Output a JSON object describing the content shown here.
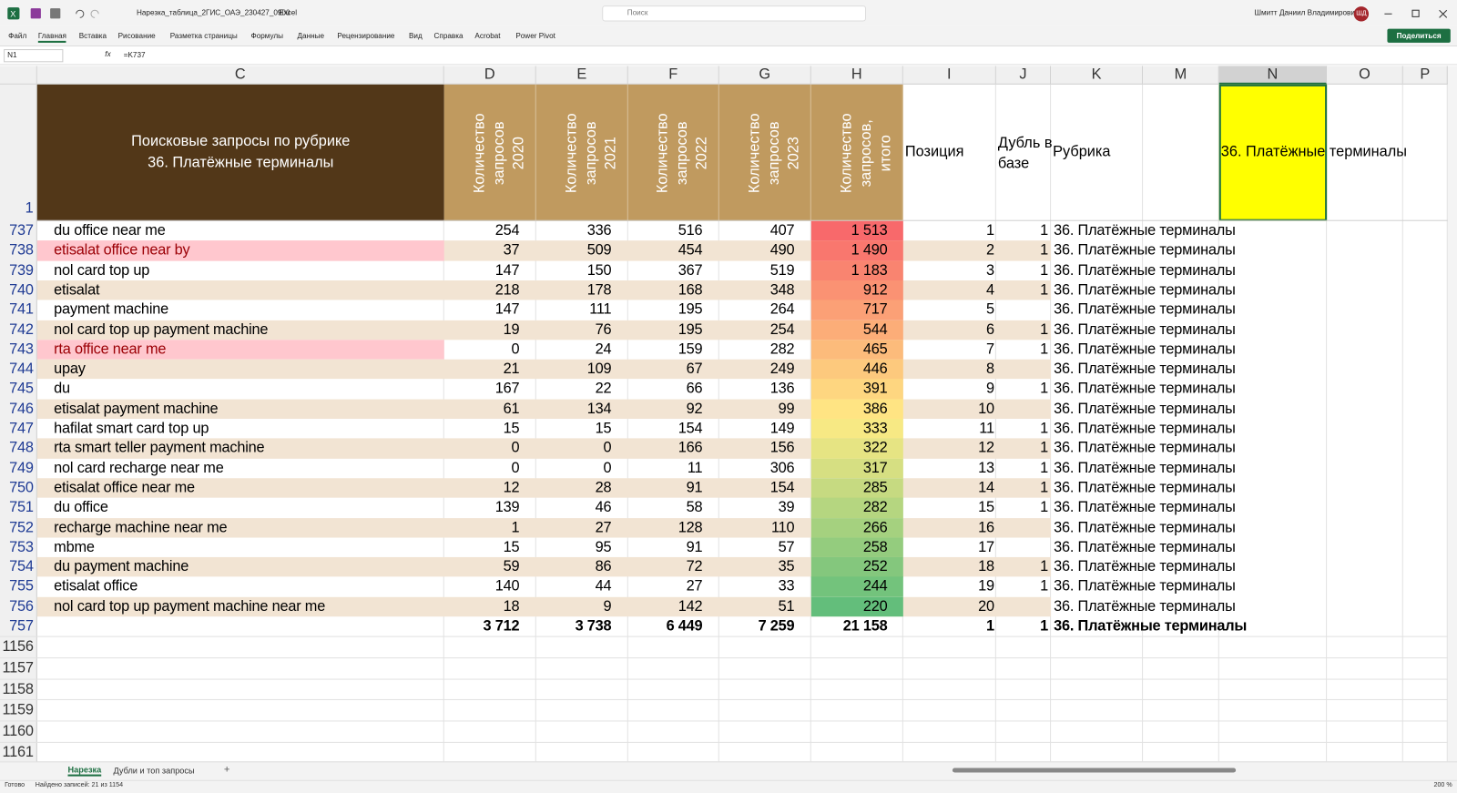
{
  "title_bar": {
    "file_name": "Нарезка_таблица_2ГИС_ОАЭ_230427_0900",
    "app": "Excel",
    "search": "Поиск",
    "user": "Шмитт Даниил Владимирович",
    "initials": "ШД"
  },
  "ribbon": {
    "tabs": [
      "Файл",
      "Главная",
      "Вставка",
      "Рисование",
      "Разметка страницы",
      "Формулы",
      "Данные",
      "Рецензирование",
      "Вид",
      "Справка",
      "Acrobat",
      "Power Pivot"
    ],
    "share": "Поделиться"
  },
  "formula_bar": {
    "name_box": "N1",
    "fx": "fx",
    "formula": "=K737"
  },
  "sheet": {
    "columns": [
      "C",
      "D",
      "E",
      "F",
      "G",
      "H",
      "I",
      "J",
      "K",
      "M",
      "N",
      "O",
      "P"
    ],
    "header": {
      "row": "1",
      "query": [
        "Поисковые запросы по рубрике",
        "36. Платёжные терминалы"
      ],
      "counts": [
        "Количество запросов 2020",
        "Количество запросов 2021",
        "Количество запросов 2022",
        "Количество запросов 2023",
        "Количество запросов, итого"
      ],
      "position": "Позиция",
      "duplicate": "Дубль в базе",
      "rubric": "Рубрика",
      "selected": "36. Платёжные терминалы"
    },
    "rows": [
      {
        "row": "737",
        "query": "du office near me",
        "counts": [
          "254",
          "336",
          "516",
          "407"
        ],
        "total": "1 513",
        "position": "1",
        "duplicate": "1",
        "rubric": "36. Платёжные терминалы"
      },
      {
        "row": "738",
        "query": "etisalat office near by",
        "counts": [
          "37",
          "509",
          "454",
          "490"
        ],
        "total": "1 490",
        "position": "2",
        "duplicate": "1",
        "rubric": "36. Платёжные терминалы",
        "fill": "#ffc7ce"
      },
      {
        "row": "739",
        "query": "nol card top up",
        "counts": [
          "147",
          "150",
          "367",
          "519"
        ],
        "total": "1 183",
        "position": "3",
        "duplicate": "1",
        "rubric": "36. Платёжные терминалы"
      },
      {
        "row": "740",
        "query": "etisalat",
        "counts": [
          "218",
          "178",
          "168",
          "348"
        ],
        "total": "912",
        "position": "4",
        "duplicate": "1",
        "rubric": "36. Платёжные терминалы"
      },
      {
        "row": "741",
        "query": "payment machine",
        "counts": [
          "147",
          "111",
          "195",
          "264"
        ],
        "total": "717",
        "position": "5",
        "duplicate": null,
        "rubric": "36. Платёжные терминалы"
      },
      {
        "row": "742",
        "query": "nol card top up payment machine",
        "counts": [
          "19",
          "76",
          "195",
          "254"
        ],
        "total": "544",
        "position": "6",
        "duplicate": "1",
        "rubric": "36. Платёжные терминалы"
      },
      {
        "row": "743",
        "query": "rta office near me",
        "counts": [
          "0",
          "24",
          "159",
          "282"
        ],
        "total": "465",
        "position": "7",
        "duplicate": "1",
        "rubric": "36. Платёжные терминалы",
        "fill": "#ffc7ce"
      },
      {
        "row": "744",
        "query": "upay",
        "counts": [
          "21",
          "109",
          "67",
          "249"
        ],
        "total": "446",
        "position": "8",
        "duplicate": null,
        "rubric": "36. Платёжные терминалы"
      },
      {
        "row": "745",
        "query": "du",
        "counts": [
          "167",
          "22",
          "66",
          "136"
        ],
        "total": "391",
        "position": "9",
        "duplicate": "1",
        "rubric": "36. Платёжные терминалы"
      },
      {
        "row": "746",
        "query": "etisalat payment machine",
        "counts": [
          "61",
          "134",
          "92",
          "99"
        ],
        "total": "386",
        "position": "10",
        "duplicate": null,
        "rubric": "36. Платёжные терминалы"
      },
      {
        "row": "747",
        "query": "hafilat smart card top up",
        "counts": [
          "15",
          "15",
          "154",
          "149"
        ],
        "total": "333",
        "position": "11",
        "duplicate": "1",
        "rubric": "36. Платёжные терминалы"
      },
      {
        "row": "748",
        "query": "rta smart teller payment machine",
        "counts": [
          "0",
          "0",
          "166",
          "156"
        ],
        "total": "322",
        "position": "12",
        "duplicate": "1",
        "rubric": "36. Платёжные терминалы"
      },
      {
        "row": "749",
        "query": "nol card recharge near me",
        "counts": [
          "0",
          "0",
          "11",
          "306"
        ],
        "total": "317",
        "position": "13",
        "duplicate": "1",
        "rubric": "36. Платёжные терминалы"
      },
      {
        "row": "750",
        "query": "etisalat office near me",
        "counts": [
          "12",
          "28",
          "91",
          "154"
        ],
        "total": "285",
        "position": "14",
        "duplicate": "1",
        "rubric": "36. Платёжные терминалы"
      },
      {
        "row": "751",
        "query": "du office",
        "counts": [
          "139",
          "46",
          "58",
          "39"
        ],
        "total": "282",
        "position": "15",
        "duplicate": "1",
        "rubric": "36. Платёжные терминалы"
      },
      {
        "row": "752",
        "query": "recharge machine near me",
        "counts": [
          "1",
          "27",
          "128",
          "110"
        ],
        "total": "266",
        "position": "16",
        "duplicate": null,
        "rubric": "36. Платёжные терминалы"
      },
      {
        "row": "753",
        "query": "mbme",
        "counts": [
          "15",
          "95",
          "91",
          "57"
        ],
        "total": "258",
        "position": "17",
        "duplicate": null,
        "rubric": "36. Платёжные терминалы"
      },
      {
        "row": "754",
        "query": "du payment machine",
        "counts": [
          "59",
          "86",
          "72",
          "35"
        ],
        "total": "252",
        "position": "18",
        "duplicate": "1",
        "rubric": "36. Платёжные терминалы"
      },
      {
        "row": "755",
        "query": "etisalat office",
        "counts": [
          "140",
          "44",
          "27",
          "33"
        ],
        "total": "244",
        "position": "19",
        "duplicate": "1",
        "rubric": "36. Платёжные терминалы"
      },
      {
        "row": "756",
        "query": "nol card top up payment machine near me",
        "counts": [
          "18",
          "9",
          "142",
          "51"
        ],
        "total": "220",
        "position": "20",
        "duplicate": null,
        "rubric": "36. Платёжные терминалы"
      }
    ],
    "total_row": {
      "row": "757",
      "counts": [
        "3 712",
        "3 738",
        "6 449",
        "7 259"
      ],
      "total": "21 158",
      "position": "1",
      "duplicate": "1",
      "rubric": "36. Платёжные терминалы"
    },
    "empty_rows": [
      "1156",
      "1157",
      "1158",
      "1159",
      "1160",
      "1161"
    ]
  },
  "sheet_tabs": [
    "Нарезка",
    "Дубли и топ запросы"
  ],
  "new_sheet": "+",
  "status": {
    "ready": "Готово",
    "found": "Найдено записей: 21 из 1154",
    "zoom": "200 %"
  }
}
